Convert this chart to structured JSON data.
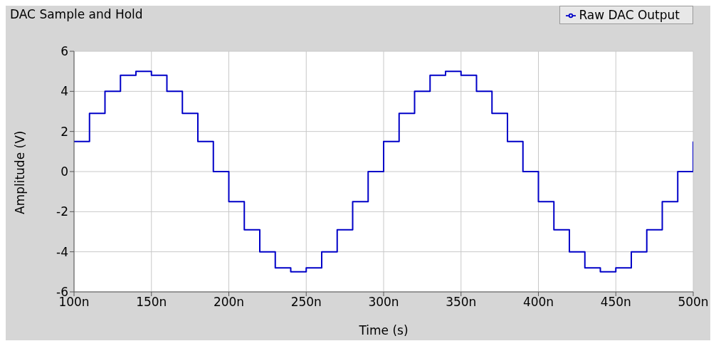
{
  "chart_data": {
    "type": "step",
    "title": "DAC Sample and Hold",
    "xlabel": "Time (s)",
    "ylabel": "Amplitude (V)",
    "x": [
      100,
      110,
      120,
      130,
      140,
      150,
      160,
      170,
      180,
      190,
      200,
      210,
      220,
      230,
      240,
      250,
      260,
      270,
      280,
      290,
      300,
      310,
      320,
      330,
      340,
      350,
      360,
      370,
      380,
      390,
      400,
      410,
      420,
      430,
      440,
      450,
      460,
      470,
      480,
      490,
      500
    ],
    "series": [
      {
        "name": "Raw DAC Output",
        "color": "#0000c8",
        "values": [
          1.5,
          2.9,
          4.0,
          4.8,
          5,
          4.8,
          4.0,
          2.9,
          1.5,
          0,
          -1.5,
          -2.9,
          -4.0,
          -4.8,
          -5,
          -4.8,
          -4.0,
          -2.9,
          -1.5,
          0,
          1.5,
          2.9,
          4.0,
          4.8,
          5,
          4.8,
          4.0,
          2.9,
          1.5,
          0,
          -1.5,
          -2.9,
          -4.0,
          -4.8,
          -5,
          -4.8,
          -4.0,
          -2.9,
          -1.5,
          0,
          1.5
        ]
      }
    ],
    "xlim": [
      100,
      500
    ],
    "xticks": [
      {
        "value": 100,
        "label": "100n"
      },
      {
        "value": 150,
        "label": "150n"
      },
      {
        "value": 200,
        "label": "200n"
      },
      {
        "value": 250,
        "label": "250n"
      },
      {
        "value": 300,
        "label": "300n"
      },
      {
        "value": 350,
        "label": "350n"
      },
      {
        "value": 400,
        "label": "400n"
      },
      {
        "value": 450,
        "label": "450n"
      },
      {
        "value": 500,
        "label": "500n"
      }
    ],
    "ylim": [
      -6,
      6
    ],
    "yticks": [
      -6,
      -4,
      -2,
      0,
      2,
      4,
      6
    ],
    "grid": true,
    "legend": "top right",
    "marker": "none",
    "line_style": "solid"
  }
}
